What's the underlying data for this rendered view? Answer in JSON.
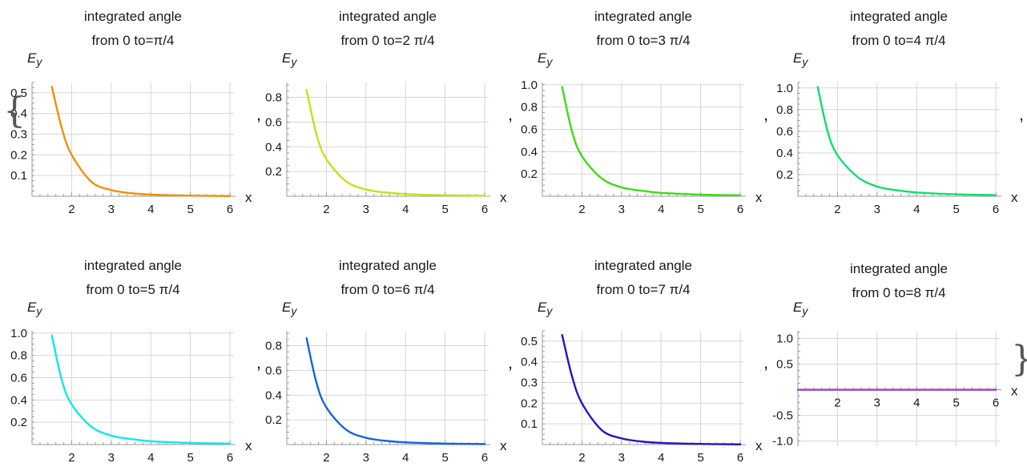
{
  "separator": ",",
  "brace_open": "{",
  "brace_close": "}",
  "chart_data": [
    {
      "type": "line",
      "title": [
        "integrated angle",
        "from 0 to=π/4"
      ],
      "xlabel": "x",
      "ylabel": "E",
      "ylabel_sub": "y",
      "color": "#f0900a",
      "xlim": [
        1,
        6.1
      ],
      "ylim": [
        0,
        0.55
      ],
      "xticks": [
        2,
        3,
        4,
        5,
        6
      ],
      "yticks": [
        0.1,
        0.2,
        0.3,
        0.4,
        0.5
      ],
      "ytick_labels": [
        "0.1",
        "0.2",
        "0.3",
        "0.4",
        "0.5"
      ],
      "series": [
        {
          "x": [
            1.5,
            1.75,
            2,
            2.5,
            3,
            3.5,
            4,
            5,
            6
          ],
          "y": [
            0.53,
            0.33,
            0.2,
            0.07,
            0.03,
            0.015,
            0.008,
            0.003,
            0.001
          ]
        }
      ]
    },
    {
      "type": "line",
      "title": [
        "integrated angle",
        "from 0 to=2 π/4"
      ],
      "xlabel": "x",
      "ylabel": "E",
      "ylabel_sub": "y",
      "color": "#c8e016",
      "xlim": [
        1,
        6.1
      ],
      "ylim": [
        0,
        0.92
      ],
      "xticks": [
        2,
        3,
        4,
        5,
        6
      ],
      "yticks": [
        0.2,
        0.4,
        0.6,
        0.8
      ],
      "ytick_labels": [
        "0.2",
        "0.4",
        "0.6",
        "0.8"
      ],
      "series": [
        {
          "x": [
            1.5,
            1.75,
            2,
            2.5,
            3,
            3.5,
            4,
            5,
            6
          ],
          "y": [
            0.86,
            0.5,
            0.3,
            0.12,
            0.055,
            0.03,
            0.018,
            0.008,
            0.004
          ]
        }
      ]
    },
    {
      "type": "line",
      "title": [
        "integrated angle",
        "from 0 to=3 π/4"
      ],
      "xlabel": "x",
      "ylabel": "E",
      "ylabel_sub": "y",
      "color": "#3cdc14",
      "xlim": [
        1,
        6.1
      ],
      "ylim": [
        0,
        1.02
      ],
      "xticks": [
        2,
        3,
        4,
        5,
        6
      ],
      "yticks": [
        0.2,
        0.4,
        0.6,
        0.8,
        1.0
      ],
      "ytick_labels": [
        "0.2",
        "0.4",
        "0.6",
        "0.8",
        "1.0"
      ],
      "series": [
        {
          "x": [
            1.5,
            1.75,
            2,
            2.5,
            3,
            3.5,
            4,
            5,
            6
          ],
          "y": [
            0.98,
            0.58,
            0.36,
            0.16,
            0.08,
            0.05,
            0.03,
            0.015,
            0.008
          ]
        }
      ]
    },
    {
      "type": "line",
      "title": [
        "integrated angle",
        "from 0 to=4 π/4"
      ],
      "xlabel": "x",
      "ylabel": "E",
      "ylabel_sub": "y",
      "color": "#14dc6e",
      "xlim": [
        1,
        6.1
      ],
      "ylim": [
        0,
        1.05
      ],
      "xticks": [
        2,
        3,
        4,
        5,
        6
      ],
      "yticks": [
        0.2,
        0.4,
        0.6,
        0.8,
        1.0
      ],
      "ytick_labels": [
        "0.2",
        "0.4",
        "0.6",
        "0.8",
        "1.0"
      ],
      "series": [
        {
          "x": [
            1.5,
            1.75,
            2,
            2.5,
            3,
            3.5,
            4,
            5,
            6
          ],
          "y": [
            1.01,
            0.6,
            0.38,
            0.18,
            0.09,
            0.055,
            0.035,
            0.018,
            0.01
          ]
        }
      ]
    },
    {
      "type": "line",
      "title": [
        "integrated angle",
        "from 0 to=5 π/4"
      ],
      "xlabel": "x",
      "ylabel": "E",
      "ylabel_sub": "y",
      "color": "#14e6e6",
      "xlim": [
        1,
        6.1
      ],
      "ylim": [
        0,
        1.02
      ],
      "xticks": [
        2,
        3,
        4,
        5,
        6
      ],
      "yticks": [
        0.2,
        0.4,
        0.6,
        0.8,
        1.0
      ],
      "ytick_labels": [
        "0.2",
        "0.4",
        "0.6",
        "0.8",
        "1.0"
      ],
      "series": [
        {
          "x": [
            1.5,
            1.75,
            2,
            2.5,
            3,
            3.5,
            4,
            5,
            6
          ],
          "y": [
            0.98,
            0.58,
            0.36,
            0.16,
            0.08,
            0.05,
            0.03,
            0.015,
            0.008
          ]
        }
      ]
    },
    {
      "type": "line",
      "title": [
        "integrated angle",
        "from 0 to=6 π/4"
      ],
      "xlabel": "x",
      "ylabel": "E",
      "ylabel_sub": "y",
      "color": "#1464dc",
      "xlim": [
        1,
        6.1
      ],
      "ylim": [
        0,
        0.92
      ],
      "xticks": [
        2,
        3,
        4,
        5,
        6
      ],
      "yticks": [
        0.2,
        0.4,
        0.6,
        0.8
      ],
      "ytick_labels": [
        "0.2",
        "0.4",
        "0.6",
        "0.8"
      ],
      "series": [
        {
          "x": [
            1.5,
            1.75,
            2,
            2.5,
            3,
            3.5,
            4,
            5,
            6
          ],
          "y": [
            0.86,
            0.5,
            0.3,
            0.12,
            0.055,
            0.03,
            0.018,
            0.008,
            0.004
          ]
        }
      ]
    },
    {
      "type": "line",
      "title": [
        "integrated angle",
        "from 0 to=7 π/4"
      ],
      "xlabel": "x",
      "ylabel": "E",
      "ylabel_sub": "y",
      "color": "#2814c8",
      "xlim": [
        1,
        6.1
      ],
      "ylim": [
        0,
        0.55
      ],
      "xticks": [
        2,
        3,
        4,
        5,
        6
      ],
      "yticks": [
        0.1,
        0.2,
        0.3,
        0.4,
        0.5
      ],
      "ytick_labels": [
        "0.1",
        "0.2",
        "0.3",
        "0.4",
        "0.5"
      ],
      "series": [
        {
          "x": [
            1.5,
            1.75,
            2,
            2.5,
            3,
            3.5,
            4,
            5,
            6
          ],
          "y": [
            0.53,
            0.33,
            0.2,
            0.07,
            0.03,
            0.015,
            0.008,
            0.003,
            0.001
          ]
        }
      ]
    },
    {
      "type": "line",
      "title": [
        "integrated angle",
        "from 0 to=8 π/4"
      ],
      "xlabel": "x",
      "ylabel": "E",
      "ylabel_sub": "y",
      "color": "#9c3cc8",
      "xlim": [
        1,
        6.1
      ],
      "ylim": [
        -1.1,
        1.15
      ],
      "xticks": [
        2,
        3,
        4,
        5,
        6
      ],
      "yticks": [
        -1.0,
        -0.5,
        0.5,
        1.0
      ],
      "ytick_labels": [
        "-1.0",
        "-0.5",
        "0.5",
        "1.0"
      ],
      "series": [
        {
          "x": [
            1,
            6
          ],
          "y": [
            0,
            0
          ]
        }
      ]
    }
  ]
}
